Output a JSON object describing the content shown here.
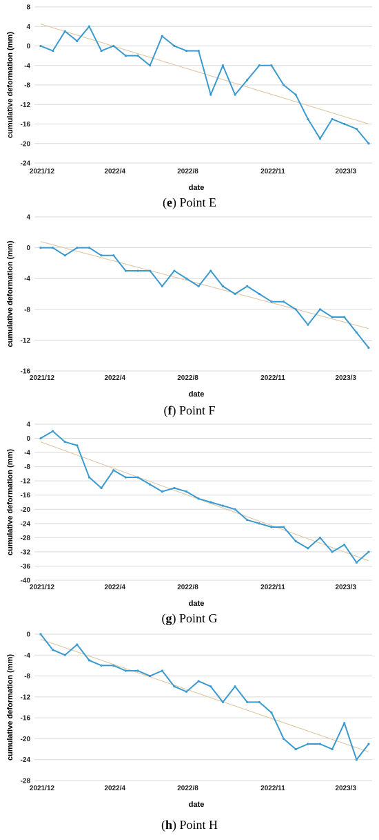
{
  "chart_data": [
    {
      "type": "line",
      "panel_letter": "e",
      "panel_title": "Point E",
      "xlabel": "date",
      "ylabel": "cumulative deformation  (mm)",
      "ylim": [
        -24,
        8
      ],
      "yticks": [
        8,
        4,
        0,
        -4,
        -8,
        -12,
        -16,
        -20,
        -24
      ],
      "x_tick_labels": [
        "2021/12",
        "2022/4",
        "2022/8",
        "2022/11",
        "2023/3"
      ],
      "x_tick_index": [
        0,
        6,
        12,
        19,
        25
      ],
      "grid": "horizontal",
      "series": [
        {
          "values": [
            0,
            -1,
            3,
            1,
            4,
            -1,
            0,
            -2,
            -2,
            -4,
            2,
            0,
            -1,
            -1,
            -10,
            -4,
            -10,
            -7,
            -4,
            -4,
            -8,
            -10,
            -15,
            -19,
            -15,
            -16,
            -17,
            -20
          ]
        }
      ],
      "trendline": {
        "start": 4.5,
        "end": -16
      },
      "colors": {
        "series": "#3a9ad0",
        "trend": "#e2c9a8",
        "grid": "#d9d9d9"
      }
    },
    {
      "type": "line",
      "panel_letter": "f",
      "panel_title": "Point F",
      "xlabel": "date",
      "ylabel": "cumulative deformation  (mm)",
      "ylim": [
        -16,
        4
      ],
      "yticks": [
        4,
        0,
        -4,
        -8,
        -12,
        -16
      ],
      "x_tick_labels": [
        "2021/12",
        "2022/4",
        "2022/8",
        "2022/11",
        "2023/3"
      ],
      "x_tick_index": [
        0,
        6,
        12,
        19,
        25
      ],
      "grid": "horizontal",
      "series": [
        {
          "values": [
            0,
            0,
            -1,
            0,
            0,
            -1,
            -1,
            -3,
            -3,
            -3,
            -5,
            -3,
            -4,
            -5,
            -3,
            -5,
            -6,
            -5,
            -6,
            -7,
            -7,
            -8,
            -10,
            -8,
            -9,
            -9,
            -11,
            -13
          ]
        }
      ],
      "trendline": {
        "start": 0.8,
        "end": -10.5
      },
      "colors": {
        "series": "#3a9ad0",
        "trend": "#e2c9a8",
        "grid": "#d9d9d9"
      }
    },
    {
      "type": "line",
      "panel_letter": "g",
      "panel_title": "Point G",
      "xlabel": "date",
      "ylabel": "cumulative deformation  (mm)",
      "ylim": [
        -40,
        4
      ],
      "yticks": [
        4,
        0,
        -4,
        -8,
        -12,
        -16,
        -20,
        -24,
        -28,
        -32,
        -36,
        -40
      ],
      "x_tick_labels": [
        "2021/12",
        "2022/4",
        "2022/8",
        "2022/11",
        "2023/3"
      ],
      "x_tick_index": [
        0,
        6,
        12,
        19,
        25
      ],
      "grid": "horizontal",
      "series": [
        {
          "values": [
            0,
            2,
            -1,
            -2,
            -11,
            -14,
            -9,
            -11,
            -11,
            -13,
            -15,
            -14,
            -15,
            -17,
            -18,
            -19,
            -20,
            -23,
            -24,
            -25,
            -25,
            -29,
            -31,
            -28,
            -32,
            -30,
            -35,
            -32
          ]
        }
      ],
      "trendline": {
        "start": -1,
        "end": -34.5
      },
      "colors": {
        "series": "#3a9ad0",
        "trend": "#e2c9a8",
        "grid": "#d9d9d9"
      }
    },
    {
      "type": "line",
      "panel_letter": "h",
      "panel_title": "Point H",
      "xlabel": "date",
      "ylabel": "cumulative deformation  (mm)",
      "ylim": [
        -28,
        0
      ],
      "yticks": [
        0,
        -4,
        -8,
        -12,
        -16,
        -20,
        -24,
        -28
      ],
      "x_tick_labels": [
        "2021/12",
        "2022/4",
        "2022/8",
        "2022/11",
        "2023/3"
      ],
      "x_tick_index": [
        0,
        6,
        12,
        19,
        25
      ],
      "grid": "horizontal",
      "series": [
        {
          "values": [
            0,
            -3,
            -4,
            -2,
            -5,
            -6,
            -6,
            -7,
            -7,
            -8,
            -7,
            -10,
            -11,
            -9,
            -10,
            -13,
            -10,
            -13,
            -13,
            -15,
            -20,
            -22,
            -21,
            -21,
            -22,
            -17,
            -24,
            -21
          ]
        }
      ],
      "trendline": {
        "start": -1,
        "end": -22.5
      },
      "colors": {
        "series": "#3a9ad0",
        "trend": "#e2c9a8",
        "grid": "#d9d9d9"
      }
    }
  ]
}
